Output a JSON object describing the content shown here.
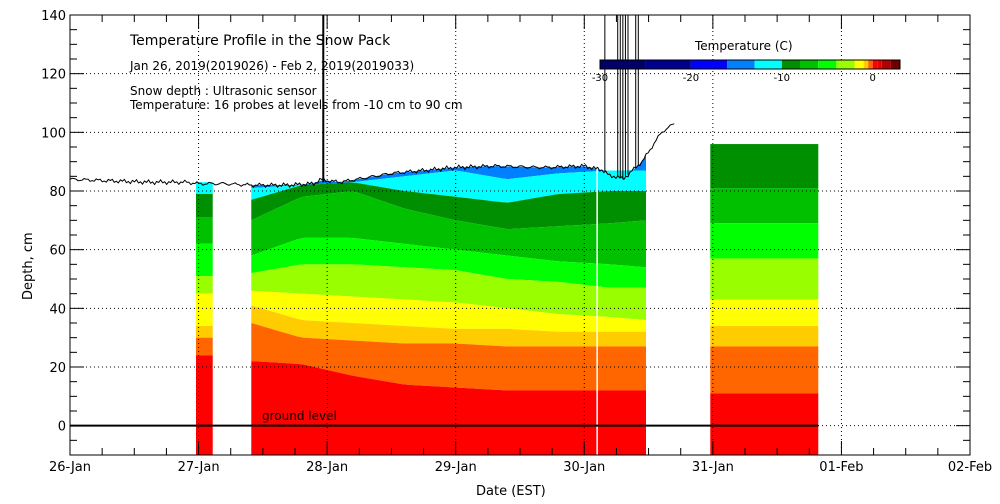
{
  "chart_data": {
    "type": "heatmap",
    "title": "Temperature Profile in the Snow Pack",
    "subtitle": "Jan 26, 2019(2019026) - Feb  2, 2019(2019033)",
    "notes": [
      "Snow depth : Ultrasonic sensor",
      "Temperature: 16 probes at levels from -10 cm to 90 cm"
    ],
    "xlabel": "Date (EST)",
    "ylabel": "Depth, cm",
    "x_ticks": [
      "26-Jan",
      "27-Jan",
      "28-Jan",
      "29-Jan",
      "30-Jan",
      "31-Jan",
      "01-Feb",
      "02-Feb"
    ],
    "xlim_days": [
      0,
      7
    ],
    "ylim": [
      -10,
      140
    ],
    "y_ticks": [
      0,
      20,
      40,
      60,
      80,
      100,
      120,
      140
    ],
    "grid": "dotted",
    "ground_label": "ground level",
    "colorbar": {
      "title": "Temperature (C)",
      "placement": "top-right",
      "range": [
        -30,
        3
      ],
      "tick_labels": [
        -30,
        -20,
        -10,
        0
      ],
      "bins": [
        {
          "from": -30,
          "to": -25,
          "color": "#000066"
        },
        {
          "from": -25,
          "to": -20,
          "color": "#00008f"
        },
        {
          "from": -20,
          "to": -16,
          "color": "#0000ff"
        },
        {
          "from": -16,
          "to": -13,
          "color": "#0080ff"
        },
        {
          "from": -13,
          "to": -10,
          "color": "#00ffff"
        },
        {
          "from": -10,
          "to": -8,
          "color": "#008f00"
        },
        {
          "from": -8,
          "to": -6,
          "color": "#00c000"
        },
        {
          "from": -6,
          "to": -4,
          "color": "#00ff00"
        },
        {
          "from": -4,
          "to": -2,
          "color": "#99ff00"
        },
        {
          "from": -2,
          "to": -1,
          "color": "#ffff00"
        },
        {
          "from": -1,
          "to": -0.5,
          "color": "#ffcc00"
        },
        {
          "from": -0.5,
          "to": 0,
          "color": "#ff6600"
        },
        {
          "from": 0,
          "to": 0.5,
          "color": "#ff0000"
        },
        {
          "from": 0.5,
          "to": 1,
          "color": "#e00000"
        },
        {
          "from": 1,
          "to": 2,
          "color": "#b00000"
        },
        {
          "from": 2,
          "to": 3,
          "color": "#700000"
        }
      ]
    },
    "snow_depth_series": {
      "name": "Snow depth",
      "x_days": [
        0,
        0.3,
        0.6,
        0.9,
        1.0,
        1.2,
        1.4,
        1.7,
        1.9,
        1.95,
        2.0,
        2.1,
        2.5,
        3.0,
        3.3,
        3.7,
        4.0,
        4.15,
        4.2,
        4.25,
        4.3,
        4.35,
        4.4,
        4.45,
        4.6,
        4.7
      ],
      "depth_cm": [
        84,
        83.5,
        83,
        83,
        82.5,
        82.5,
        82,
        82,
        82.5,
        84,
        83.5,
        83,
        86,
        88,
        88.5,
        88,
        88.5,
        87,
        85,
        85,
        84,
        86,
        88,
        90,
        100,
        103
      ]
    },
    "temperature_blocks": [
      {
        "x_days": [
          0.98,
          1.11
        ],
        "top_cm": 83,
        "bands": [
          {
            "bottom_cm": 79,
            "color": "#00ffff"
          },
          {
            "bottom_cm": 71,
            "color": "#008f00"
          },
          {
            "bottom_cm": 62,
            "color": "#00c000"
          },
          {
            "bottom_cm": 51,
            "color": "#00ff00"
          },
          {
            "bottom_cm": 45,
            "color": "#99ff00"
          },
          {
            "bottom_cm": 34,
            "color": "#ffff00"
          },
          {
            "bottom_cm": 30,
            "color": "#ffcc00"
          },
          {
            "bottom_cm": 24,
            "color": "#ff6600"
          },
          {
            "bottom_cm": -10,
            "color": "#ff0000"
          }
        ]
      },
      {
        "x_days": [
          1.41,
          4.48
        ],
        "top_cm": "snow_surface",
        "profile_x_days": [
          1.41,
          1.8,
          2.2,
          2.6,
          3.0,
          3.4,
          3.8,
          4.2,
          4.48
        ],
        "bands_profile": [
          {
            "color": "#0080ff",
            "bottoms_cm": [
              81,
              82,
              83,
              85,
              87,
              84,
              86,
              87,
              87
            ]
          },
          {
            "color": "#00ffff",
            "bottoms_cm": [
              77,
              82,
              83,
              80,
              78,
              76,
              79,
              80,
              80
            ]
          },
          {
            "color": "#008f00",
            "bottoms_cm": [
              70,
              78,
              80,
              74,
              70,
              67,
              68,
              69,
              70
            ]
          },
          {
            "color": "#00c000",
            "bottoms_cm": [
              58,
              64,
              64,
              62,
              60,
              58,
              56,
              55,
              54
            ]
          },
          {
            "color": "#00ff00",
            "bottoms_cm": [
              52,
              55,
              55,
              54,
              53,
              50,
              49,
              47,
              47
            ]
          },
          {
            "color": "#99ff00",
            "bottoms_cm": [
              46,
              45,
              44,
              43,
              42,
              40,
              38,
              37,
              36
            ]
          },
          {
            "color": "#ffff00",
            "bottoms_cm": [
              41,
              36,
              35,
              34,
              33,
              33,
              32,
              32,
              32
            ]
          },
          {
            "color": "#ffcc00",
            "bottoms_cm": [
              35,
              30,
              29,
              28,
              28,
              27,
              27,
              27,
              27
            ]
          },
          {
            "color": "#ff6600",
            "bottoms_cm": [
              22,
              21,
              17,
              14,
              13,
              12,
              12,
              12,
              12
            ]
          },
          {
            "color": "#ff0000",
            "bottoms_cm": [
              -10,
              -10,
              -10,
              -10,
              -10,
              -10,
              -10,
              -10,
              -10
            ]
          }
        ]
      },
      {
        "x_days": [
          4.98,
          5.82
        ],
        "top_cm": 96,
        "bands": [
          {
            "bottom_cm": 81,
            "color": "#008f00"
          },
          {
            "bottom_cm": 69,
            "color": "#00c000"
          },
          {
            "bottom_cm": 57,
            "color": "#00ff00"
          },
          {
            "bottom_cm": 43,
            "color": "#99ff00"
          },
          {
            "bottom_cm": 34,
            "color": "#ffff00"
          },
          {
            "bottom_cm": 27,
            "color": "#ffcc00"
          },
          {
            "bottom_cm": 11,
            "color": "#ff6600"
          },
          {
            "bottom_cm": -10,
            "color": "#ff0000"
          }
        ]
      }
    ]
  }
}
